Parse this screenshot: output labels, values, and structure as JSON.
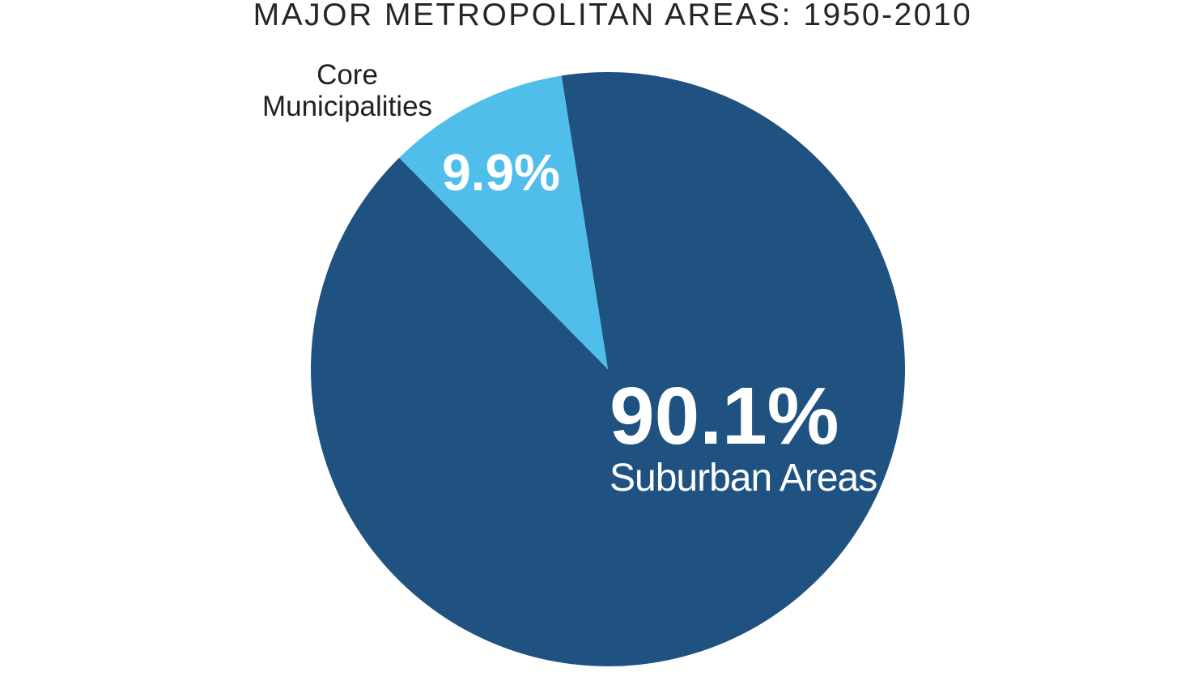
{
  "chart_data": {
    "type": "pie",
    "title": "MAJOR METROPOLITAN AREAS: 1950-2010",
    "total": 100,
    "legend_position": "none",
    "background_color": "#FFFFFF",
    "slices": [
      {
        "label": "Suburban Areas",
        "value": 90.1,
        "display_value": "90.1%",
        "color": "#1F5280",
        "value_label_color": "#FFFFFF",
        "label_placement": "inside"
      },
      {
        "label": "Core Municipalities",
        "value": 9.9,
        "display_value": "9.9%",
        "color": "#4FBEEB",
        "value_label_color": "#FFFFFF",
        "label_placement": "value-inside-name-outside"
      }
    ]
  },
  "colors": {
    "title_text": "#262626",
    "outside_label_text": "#231F20",
    "inside_label_text": "#FFFFFF"
  }
}
